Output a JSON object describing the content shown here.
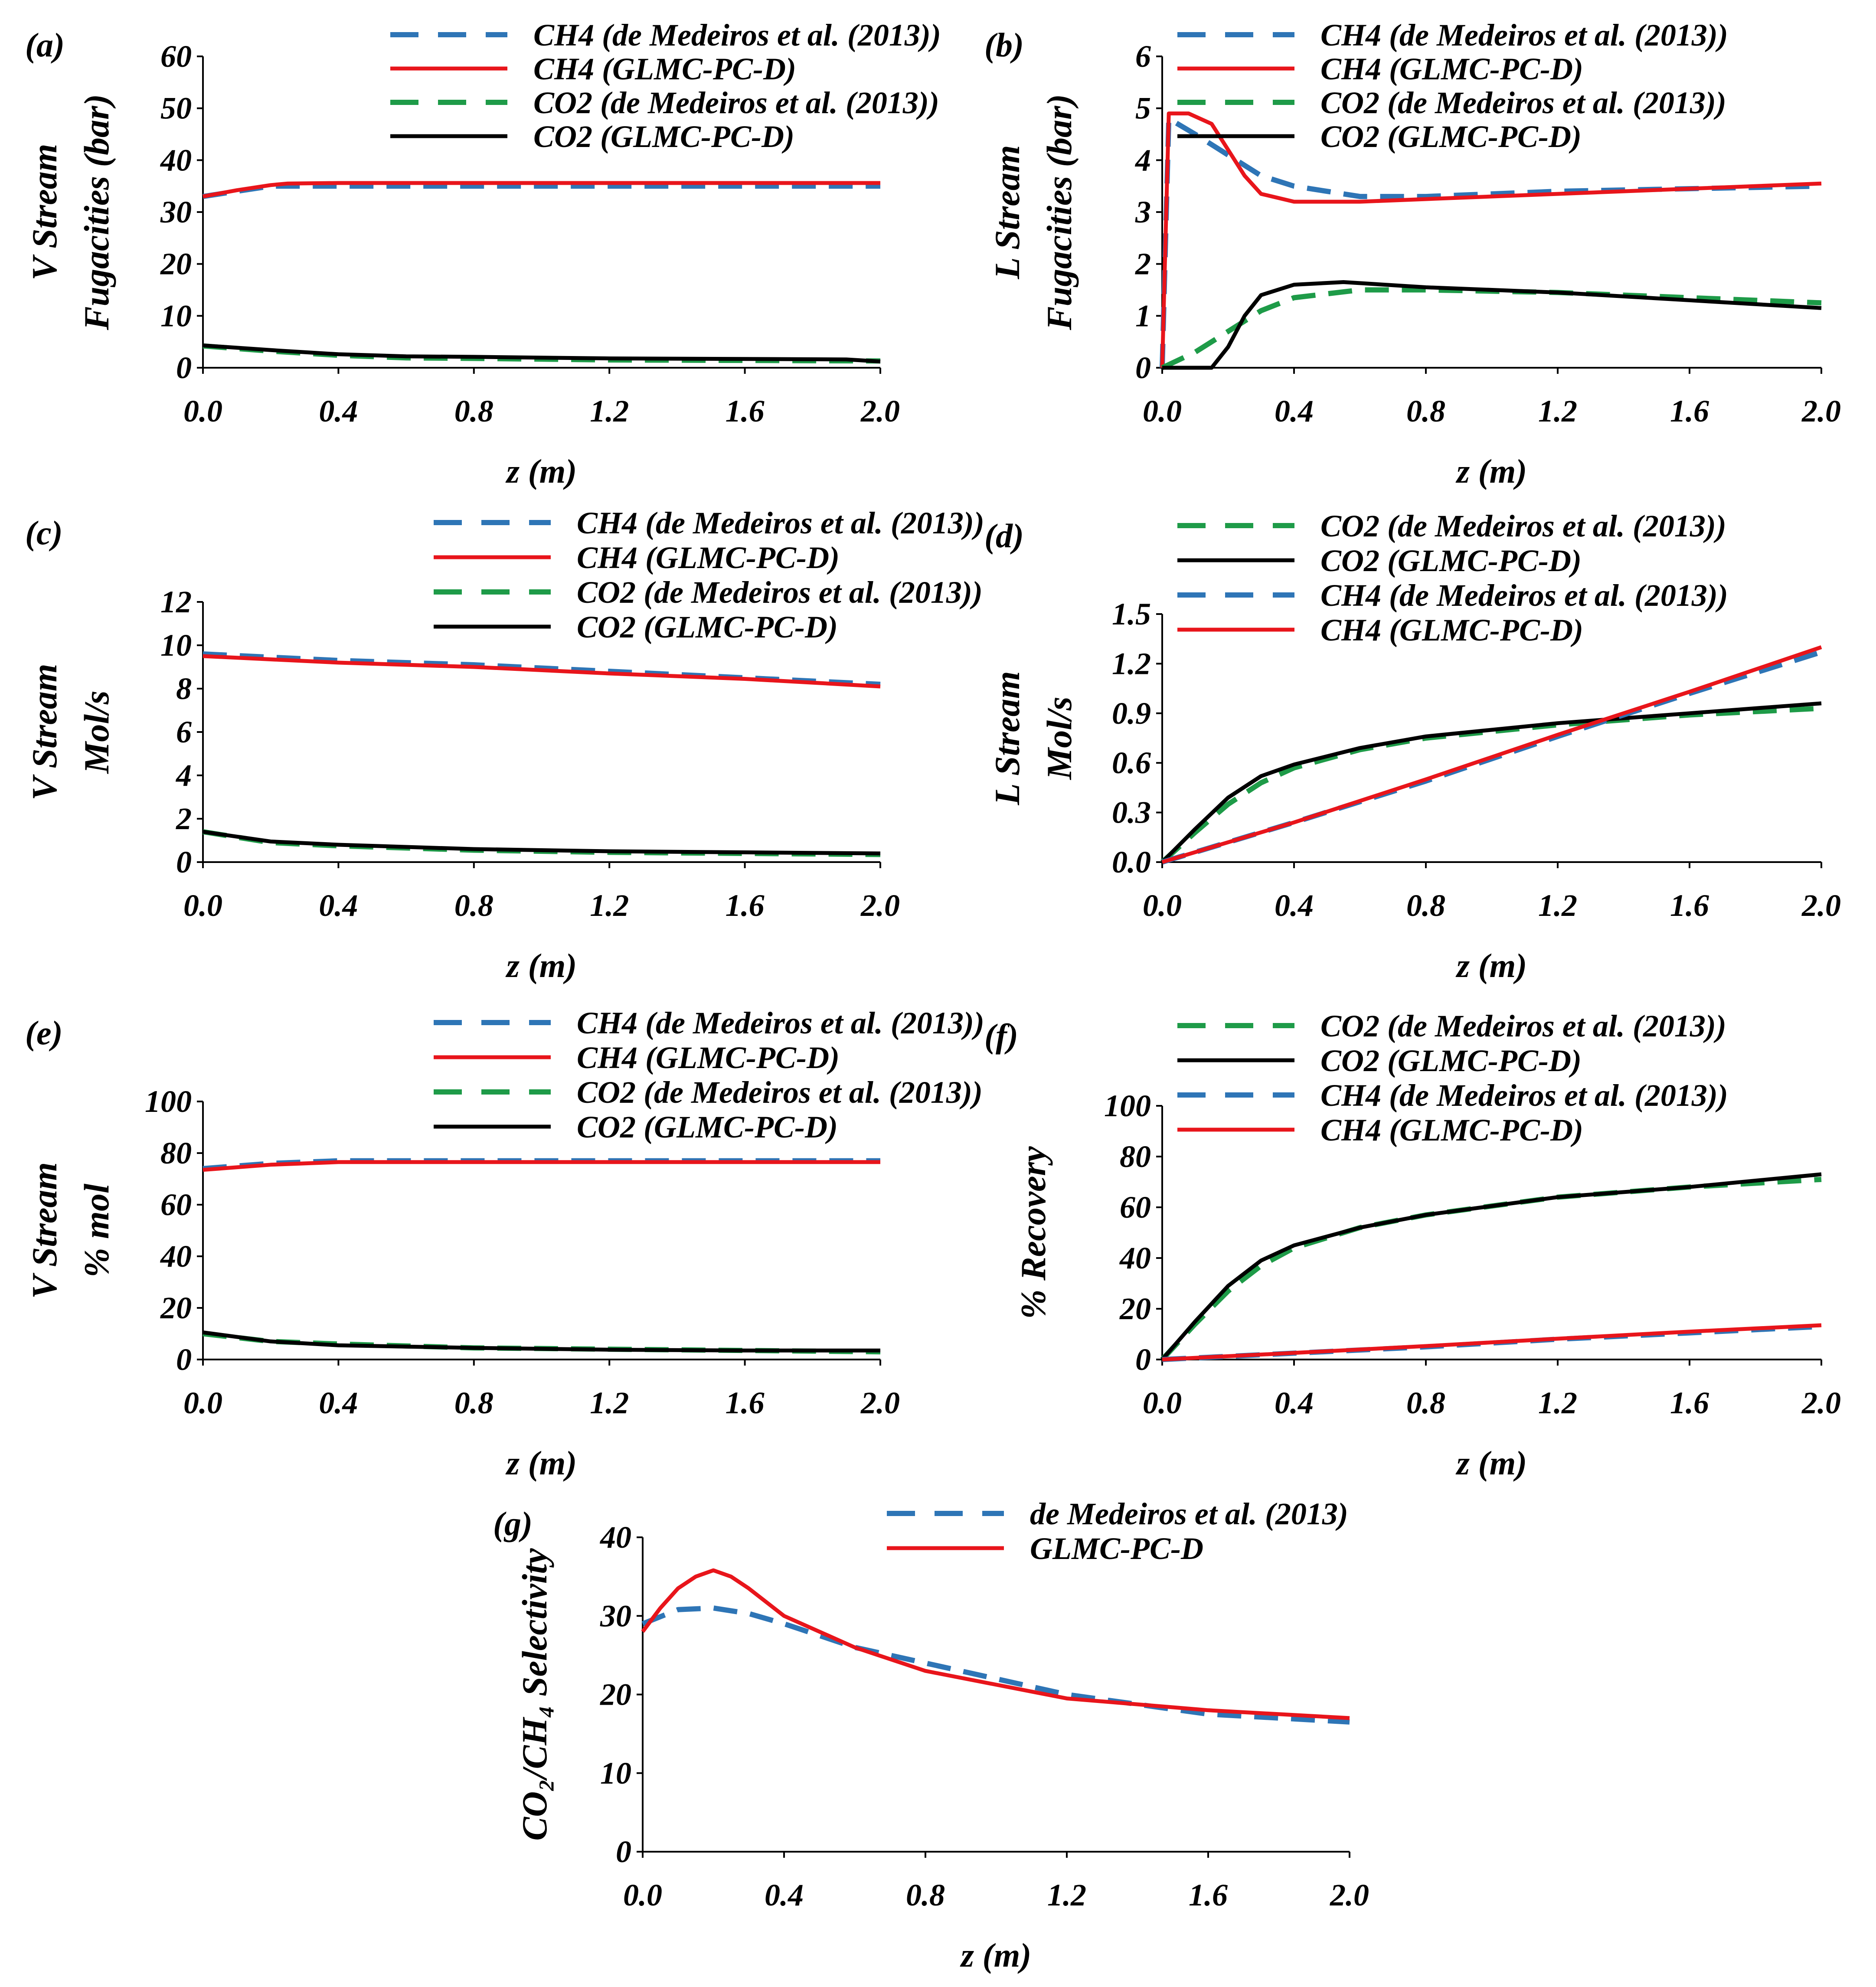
{
  "figure": {
    "colors": {
      "axis": "#000000",
      "blue": "#2E75B6",
      "red": "#E8151B",
      "green": "#1E9B48",
      "black": "#000000"
    }
  },
  "chart_data": [
    {
      "id": "a",
      "panel_label": "(a)",
      "type": "line",
      "ylabel_lines": [
        "V Stream",
        "Fugacities (bar)"
      ],
      "xlabel": "z (m)",
      "xlim": [
        0,
        2.0
      ],
      "ylim": [
        0,
        60
      ],
      "xticks": [
        "0.0",
        "0.4",
        "0.8",
        "1.2",
        "1.6",
        "2.0"
      ],
      "yticks": [
        "0",
        "10",
        "20",
        "30",
        "40",
        "50",
        "60"
      ],
      "grid": false,
      "legend_position": "top-right",
      "series": [
        {
          "name": "CH4 (de Medeiros et al. (2013))",
          "style": "dashed",
          "color": "#2E75B6",
          "x": [
            0,
            0.1,
            0.2,
            0.4,
            0.8,
            1.2,
            1.6,
            2.0
          ],
          "y": [
            33,
            34,
            35,
            35,
            35,
            35,
            35,
            35
          ]
        },
        {
          "name": "CH4 (GLMC-PC-D)",
          "style": "solid",
          "color": "#E8151B",
          "x": [
            0,
            0.1,
            0.2,
            0.25,
            0.4,
            0.8,
            1.2,
            1.6,
            2.0
          ],
          "y": [
            33,
            34.2,
            35.2,
            35.5,
            35.6,
            35.6,
            35.6,
            35.6,
            35.6
          ]
        },
        {
          "name": "CO2 (de Medeiros et al. (2013))",
          "style": "dashed",
          "color": "#1E9B48",
          "x": [
            0,
            0.2,
            0.4,
            0.6,
            0.8,
            1.2,
            1.6,
            2.0
          ],
          "y": [
            4.2,
            3.2,
            2.4,
            1.9,
            1.8,
            1.5,
            1.4,
            1.3
          ]
        },
        {
          "name": "CO2 (GLMC-PC-D)",
          "style": "solid",
          "color": "#000000",
          "x": [
            0,
            0.2,
            0.4,
            0.6,
            0.8,
            1.2,
            1.6,
            1.9,
            2.0
          ],
          "y": [
            4.3,
            3.4,
            2.6,
            2.2,
            2.1,
            1.8,
            1.7,
            1.6,
            1.2
          ]
        }
      ]
    },
    {
      "id": "b",
      "panel_label": "(b)",
      "type": "line",
      "ylabel_lines": [
        "L Stream",
        "Fugacities (bar)"
      ],
      "xlabel": "z (m)",
      "xlim": [
        0,
        2.0
      ],
      "ylim": [
        0,
        6
      ],
      "xticks": [
        "0.0",
        "0.4",
        "0.8",
        "1.2",
        "1.6",
        "2.0"
      ],
      "yticks": [
        "0",
        "1",
        "2",
        "3",
        "4",
        "5",
        "6"
      ],
      "grid": false,
      "legend_position": "top-right",
      "series": [
        {
          "name": "CH4 (de Medeiros et al. (2013))",
          "style": "dashed",
          "color": "#2E75B6",
          "x": [
            0,
            0.02,
            0.1,
            0.2,
            0.3,
            0.4,
            0.6,
            0.8,
            1.2,
            1.6,
            2.0
          ],
          "y": [
            0,
            4.8,
            4.5,
            4.1,
            3.7,
            3.5,
            3.3,
            3.3,
            3.4,
            3.45,
            3.5
          ]
        },
        {
          "name": "CH4 (GLMC-PC-D)",
          "style": "solid",
          "color": "#E8151B",
          "x": [
            0,
            0.02,
            0.08,
            0.15,
            0.2,
            0.25,
            0.3,
            0.4,
            0.6,
            0.8,
            1.2,
            1.6,
            2.0
          ],
          "y": [
            0,
            4.9,
            4.9,
            4.7,
            4.2,
            3.7,
            3.35,
            3.2,
            3.2,
            3.25,
            3.35,
            3.45,
            3.55
          ]
        },
        {
          "name": "CO2 (de Medeiros et al. (2013))",
          "style": "dashed",
          "color": "#1E9B48",
          "x": [
            0,
            0.1,
            0.2,
            0.3,
            0.4,
            0.6,
            0.8,
            1.2,
            1.6,
            2.0
          ],
          "y": [
            0,
            0.3,
            0.7,
            1.1,
            1.35,
            1.5,
            1.5,
            1.45,
            1.35,
            1.25
          ]
        },
        {
          "name": "CO2 (GLMC-PC-D)",
          "style": "solid",
          "color": "#000000",
          "x": [
            0,
            0.02,
            0.15,
            0.2,
            0.25,
            0.3,
            0.4,
            0.55,
            0.8,
            1.2,
            1.6,
            2.0
          ],
          "y": [
            0,
            0,
            0,
            0.4,
            1.0,
            1.4,
            1.6,
            1.65,
            1.55,
            1.45,
            1.3,
            1.15
          ]
        }
      ]
    },
    {
      "id": "c",
      "panel_label": "(c)",
      "type": "line",
      "ylabel_lines": [
        "V Stream",
        "Mol/s"
      ],
      "xlabel": "z (m)",
      "xlim": [
        0,
        2.0
      ],
      "ylim": [
        0,
        12
      ],
      "xticks": [
        "0.0",
        "0.4",
        "0.8",
        "1.2",
        "1.6",
        "2.0"
      ],
      "yticks": [
        "0",
        "2",
        "4",
        "6",
        "8",
        "10",
        "12"
      ],
      "grid": false,
      "legend_position": "top-right",
      "series": [
        {
          "name": "CH4 (de Medeiros et al. (2013))",
          "style": "dashed",
          "color": "#2E75B6",
          "x": [
            0,
            0.4,
            0.8,
            1.2,
            1.6,
            2.0
          ],
          "y": [
            9.6,
            9.3,
            9.1,
            8.8,
            8.5,
            8.2
          ]
        },
        {
          "name": "CH4 (GLMC-PC-D)",
          "style": "solid",
          "color": "#E8151B",
          "x": [
            0,
            0.4,
            0.8,
            1.2,
            1.6,
            2.0
          ],
          "y": [
            9.5,
            9.2,
            9.0,
            8.7,
            8.45,
            8.1
          ]
        },
        {
          "name": "CO2 (de Medeiros et al. (2013))",
          "style": "dashed",
          "color": "#1E9B48",
          "x": [
            0,
            0.2,
            0.4,
            0.8,
            1.2,
            1.6,
            2.0
          ],
          "y": [
            1.4,
            0.9,
            0.75,
            0.55,
            0.45,
            0.4,
            0.35
          ]
        },
        {
          "name": "CO2 (GLMC-PC-D)",
          "style": "solid",
          "color": "#000000",
          "x": [
            0,
            0.2,
            0.4,
            0.8,
            1.2,
            1.6,
            2.0
          ],
          "y": [
            1.4,
            0.95,
            0.8,
            0.6,
            0.5,
            0.45,
            0.4
          ]
        }
      ]
    },
    {
      "id": "d",
      "panel_label": "(d)",
      "type": "line",
      "ylabel_lines": [
        "L Stream",
        "Mol/s"
      ],
      "xlabel": "z (m)",
      "xlim": [
        0,
        2.0
      ],
      "ylim": [
        0,
        1.5
      ],
      "xticks": [
        "0.0",
        "0.4",
        "0.8",
        "1.2",
        "1.6",
        "2.0"
      ],
      "yticks": [
        "0.0",
        "0.3",
        "0.6",
        "0.9",
        "1.2",
        "1.5"
      ],
      "grid": false,
      "legend_position": "top-right",
      "series": [
        {
          "name": "CO2 (de Medeiros et al. (2013))",
          "style": "dashed",
          "color": "#1E9B48",
          "x": [
            0,
            0.1,
            0.2,
            0.3,
            0.4,
            0.6,
            0.8,
            1.2,
            1.6,
            2.0
          ],
          "y": [
            0,
            0.18,
            0.35,
            0.48,
            0.57,
            0.68,
            0.75,
            0.83,
            0.89,
            0.93
          ]
        },
        {
          "name": "CO2 (GLMC-PC-D)",
          "style": "solid",
          "color": "#000000",
          "x": [
            0,
            0.1,
            0.2,
            0.3,
            0.4,
            0.6,
            0.8,
            1.2,
            1.6,
            2.0
          ],
          "y": [
            0,
            0.2,
            0.39,
            0.52,
            0.59,
            0.69,
            0.76,
            0.84,
            0.9,
            0.96
          ]
        },
        {
          "name": "CH4 (de Medeiros et al. (2013))",
          "style": "dashed",
          "color": "#2E75B6",
          "x": [
            0,
            0.4,
            0.8,
            1.2,
            1.6,
            2.0
          ],
          "y": [
            0,
            0.24,
            0.49,
            0.76,
            1.02,
            1.27
          ]
        },
        {
          "name": "CH4 (GLMC-PC-D)",
          "style": "solid",
          "color": "#E8151B",
          "x": [
            0,
            0.4,
            0.8,
            1.2,
            1.6,
            2.0
          ],
          "y": [
            0,
            0.24,
            0.5,
            0.77,
            1.03,
            1.3
          ]
        }
      ]
    },
    {
      "id": "e",
      "panel_label": "(e)",
      "type": "line",
      "ylabel_lines": [
        "V Stream",
        "% mol"
      ],
      "xlabel": "z (m)",
      "xlim": [
        0,
        2.0
      ],
      "ylim": [
        0,
        100
      ],
      "xticks": [
        "0.0",
        "0.4",
        "0.8",
        "1.2",
        "1.6",
        "2.0"
      ],
      "yticks": [
        "0",
        "20",
        "40",
        "60",
        "80",
        "100"
      ],
      "grid": false,
      "legend_position": "top-right",
      "series": [
        {
          "name": "CH4 (de Medeiros et al. (2013))",
          "style": "dashed",
          "color": "#2E75B6",
          "x": [
            0,
            0.2,
            0.4,
            0.8,
            1.2,
            1.6,
            2.0
          ],
          "y": [
            74,
            76,
            77,
            77,
            77,
            77,
            77
          ]
        },
        {
          "name": "CH4 (GLMC-PC-D)",
          "style": "solid",
          "color": "#E8151B",
          "x": [
            0,
            0.2,
            0.4,
            0.8,
            1.2,
            1.6,
            2.0
          ],
          "y": [
            73.5,
            75.5,
            76.5,
            76.5,
            76.5,
            76.5,
            76.5
          ]
        },
        {
          "name": "CO2 (de Medeiros et al. (2013))",
          "style": "dashed",
          "color": "#1E9B48",
          "x": [
            0,
            0.2,
            0.4,
            0.8,
            1.2,
            1.6,
            2.0
          ],
          "y": [
            10,
            7,
            6,
            4.5,
            4,
            3.5,
            3
          ]
        },
        {
          "name": "CO2 (GLMC-PC-D)",
          "style": "solid",
          "color": "#000000",
          "x": [
            0,
            0.2,
            0.4,
            0.8,
            1.2,
            1.6,
            2.0
          ],
          "y": [
            10.5,
            7,
            5.5,
            4.5,
            3.8,
            3.5,
            3.5
          ]
        }
      ]
    },
    {
      "id": "f",
      "panel_label": "(f)",
      "type": "line",
      "ylabel_lines": [
        "% Recovery"
      ],
      "xlabel": "z (m)",
      "xlim": [
        0,
        2.0
      ],
      "ylim": [
        0,
        100
      ],
      "xticks": [
        "0.0",
        "0.4",
        "0.8",
        "1.2",
        "1.6",
        "2.0"
      ],
      "yticks": [
        "0",
        "20",
        "40",
        "60",
        "80",
        "100"
      ],
      "grid": false,
      "legend_position": "top-right",
      "series": [
        {
          "name": "CO2 (de Medeiros et al. (2013))",
          "style": "dashed",
          "color": "#1E9B48",
          "x": [
            0,
            0.1,
            0.2,
            0.3,
            0.4,
            0.6,
            0.8,
            1.2,
            1.6,
            2.0
          ],
          "y": [
            0,
            14,
            27,
            37,
            44,
            52,
            57,
            64,
            68,
            71
          ]
        },
        {
          "name": "CO2 (GLMC-PC-D)",
          "style": "solid",
          "color": "#000000",
          "x": [
            0,
            0.1,
            0.2,
            0.3,
            0.4,
            0.6,
            0.8,
            1.2,
            1.6,
            2.0
          ],
          "y": [
            0,
            15,
            29,
            39,
            45,
            52,
            57,
            64,
            68,
            73
          ]
        },
        {
          "name": "CH4 (de Medeiros et al. (2013))",
          "style": "dashed",
          "color": "#2E75B6",
          "x": [
            0,
            0.4,
            0.8,
            1.2,
            1.6,
            2.0
          ],
          "y": [
            0,
            2.5,
            5,
            8,
            10.5,
            13
          ]
        },
        {
          "name": "CH4 (GLMC-PC-D)",
          "style": "solid",
          "color": "#E8151B",
          "x": [
            0,
            0.4,
            0.8,
            1.2,
            1.6,
            2.0
          ],
          "y": [
            0,
            2.6,
            5.3,
            8.2,
            11,
            13.5
          ]
        }
      ]
    },
    {
      "id": "g",
      "panel_label": "(g)",
      "type": "line",
      "ylabel_lines": [
        "CO₂/CH₄ Selectivity"
      ],
      "xlabel": "z (m)",
      "xlim": [
        0,
        2.0
      ],
      "ylim": [
        0,
        40
      ],
      "xticks": [
        "0.0",
        "0.4",
        "0.8",
        "1.2",
        "1.6",
        "2.0"
      ],
      "yticks": [
        "0",
        "10",
        "20",
        "30",
        "40"
      ],
      "grid": false,
      "legend_position": "top-right",
      "series": [
        {
          "name": "de Medeiros et al. (2013)",
          "style": "dashed",
          "color": "#2E75B6",
          "x": [
            0,
            0.1,
            0.2,
            0.3,
            0.4,
            0.6,
            0.8,
            1.2,
            1.6,
            2.0
          ],
          "y": [
            29,
            30.8,
            31,
            30.3,
            29,
            26,
            24,
            20,
            17.5,
            16.5
          ]
        },
        {
          "name": "GLMC-PC-D",
          "style": "solid",
          "color": "#E8151B",
          "x": [
            0,
            0.05,
            0.1,
            0.15,
            0.2,
            0.25,
            0.3,
            0.4,
            0.6,
            0.8,
            1.2,
            1.6,
            2.0
          ],
          "y": [
            28,
            31,
            33.5,
            35,
            35.8,
            35,
            33.5,
            30,
            26,
            23,
            19.5,
            18,
            17
          ]
        }
      ]
    }
  ]
}
